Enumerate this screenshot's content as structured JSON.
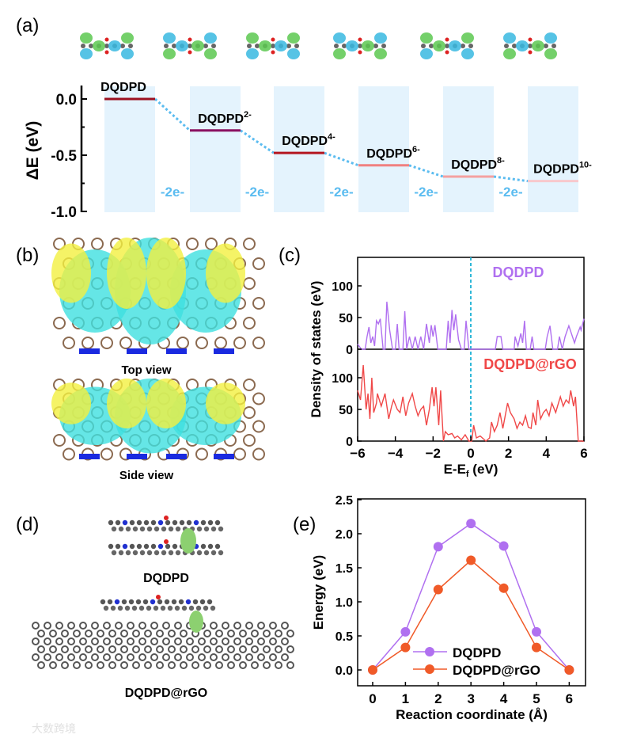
{
  "panel_labels": [
    "(a)",
    "(b)",
    "(c)",
    "(d)",
    "(e)"
  ],
  "panel_b": {
    "top_caption": "Top view",
    "side_caption": "Side view"
  },
  "panel_d": {
    "top_caption": "DQDPD",
    "bottom_caption": "DQDPD@rGO"
  },
  "watermark": "大数跨境",
  "colors": {
    "purple": "#b070f0",
    "red": "#f04848",
    "orange": "#f05a28",
    "cyan": "#30b8d8",
    "bar_bg": "#e4f3fd",
    "electron": "#5bbcf0"
  },
  "chart_data": [
    {
      "type": "bar",
      "panel": "a",
      "ylabel": "ΔE (eV)",
      "ylim": [
        -1.0,
        0.1
      ],
      "yticks": [
        "0.0",
        "-0.5",
        "-1.0"
      ],
      "categories": [
        "DQDPD",
        "DQDPD",
        "DQDPD",
        "DQDPD",
        "DQDPD",
        "DQDPD"
      ],
      "superscripts": [
        "",
        "2-",
        "4-",
        "6-",
        "8-",
        "10-"
      ],
      "values": [
        0.0,
        -0.28,
        -0.48,
        -0.59,
        -0.69,
        -0.73
      ],
      "level_colors": [
        "#9b1020",
        "#8a1060",
        "#b41620",
        "#f08080",
        "#f4a0a0",
        "#f8c8cc"
      ],
      "step_label": "-2e-"
    },
    {
      "type": "line",
      "panel": "c",
      "xlabel": "E-E",
      "xlabel_sub": "f",
      "xlabel_unit": " (eV)",
      "ylabel": "Density of states (eV)",
      "xlim": [
        -6,
        6
      ],
      "xticks": [
        "−6",
        "−4",
        "−2",
        "0",
        "2",
        "4",
        "6"
      ],
      "yticks": [
        "0",
        "50",
        "100"
      ],
      "ylim": [
        0,
        145
      ],
      "series": [
        {
          "name": "DQDPD",
          "points": [
            [
              -6,
              8
            ],
            [
              -5.8,
              0
            ],
            [
              -5.6,
              0
            ],
            [
              -5.5,
              20
            ],
            [
              -5.4,
              35
            ],
            [
              -5.3,
              10
            ],
            [
              -5.2,
              20
            ],
            [
              -5.1,
              5
            ],
            [
              -5.0,
              45
            ],
            [
              -4.9,
              40
            ],
            [
              -4.8,
              48
            ],
            [
              -4.65,
              0
            ],
            [
              -4.55,
              0
            ],
            [
              -4.45,
              75
            ],
            [
              -4.3,
              30
            ],
            [
              -4.15,
              0
            ],
            [
              -4.0,
              0
            ],
            [
              -3.9,
              40
            ],
            [
              -3.8,
              0
            ],
            [
              -3.6,
              0
            ],
            [
              -3.5,
              60
            ],
            [
              -3.4,
              0
            ],
            [
              -3.25,
              20
            ],
            [
              -3.1,
              0
            ],
            [
              -2.95,
              20
            ],
            [
              -2.8,
              0
            ],
            [
              -2.65,
              20
            ],
            [
              -2.5,
              0
            ],
            [
              -2.35,
              40
            ],
            [
              -2.2,
              10
            ],
            [
              -2.1,
              38
            ],
            [
              -2.0,
              20
            ],
            [
              -1.9,
              38
            ],
            [
              -1.75,
              0
            ],
            [
              -1.3,
              0
            ],
            [
              -1.2,
              45
            ],
            [
              -1.1,
              10
            ],
            [
              -1.0,
              62
            ],
            [
              -0.9,
              30
            ],
            [
              -0.8,
              55
            ],
            [
              -0.65,
              15
            ],
            [
              -0.5,
              0
            ],
            [
              -0.35,
              0
            ],
            [
              -0.25,
              45
            ],
            [
              -0.1,
              0
            ],
            [
              1.3,
              0
            ],
            [
              1.4,
              20
            ],
            [
              1.6,
              20
            ],
            [
              1.7,
              0
            ],
            [
              2.3,
              0
            ],
            [
              2.35,
              20
            ],
            [
              2.5,
              5
            ],
            [
              2.65,
              25
            ],
            [
              2.75,
              10
            ],
            [
              2.85,
              45
            ],
            [
              2.95,
              0
            ],
            [
              3.15,
              0
            ],
            [
              3.25,
              20
            ],
            [
              3.35,
              0
            ],
            [
              3.95,
              0
            ],
            [
              4.05,
              20
            ],
            [
              4.2,
              37
            ],
            [
              4.35,
              0
            ],
            [
              4.6,
              0
            ],
            [
              4.7,
              20
            ],
            [
              4.85,
              0
            ],
            [
              5.0,
              20
            ],
            [
              5.2,
              37
            ],
            [
              5.5,
              10
            ],
            [
              5.6,
              20
            ],
            [
              5.8,
              35
            ],
            [
              5.85,
              30
            ],
            [
              6.0,
              48
            ]
          ]
        },
        {
          "name": "DQDPD@rGO",
          "points": [
            [
              -6,
              80
            ],
            [
              -5.85,
              65
            ],
            [
              -5.7,
              120
            ],
            [
              -5.55,
              50
            ],
            [
              -5.45,
              75
            ],
            [
              -5.35,
              35
            ],
            [
              -5.25,
              100
            ],
            [
              -5.15,
              45
            ],
            [
              -5.0,
              60
            ],
            [
              -4.95,
              75
            ],
            [
              -4.75,
              55
            ],
            [
              -4.55,
              75
            ],
            [
              -4.35,
              35
            ],
            [
              -4.2,
              55
            ],
            [
              -4.1,
              65
            ],
            [
              -3.9,
              50
            ],
            [
              -3.75,
              45
            ],
            [
              -3.6,
              70
            ],
            [
              -3.45,
              40
            ],
            [
              -3.3,
              60
            ],
            [
              -3.1,
              75
            ],
            [
              -2.95,
              55
            ],
            [
              -2.8,
              40
            ],
            [
              -2.65,
              50
            ],
            [
              -2.5,
              55
            ],
            [
              -2.35,
              25
            ],
            [
              -2.2,
              50
            ],
            [
              -2.05,
              85
            ],
            [
              -1.95,
              55
            ],
            [
              -1.85,
              85
            ],
            [
              -1.7,
              25
            ],
            [
              -1.6,
              80
            ],
            [
              -1.45,
              0
            ],
            [
              -1.35,
              15
            ],
            [
              -1.2,
              10
            ],
            [
              -1.0,
              12
            ],
            [
              -0.85,
              5
            ],
            [
              -0.7,
              8
            ],
            [
              -0.5,
              2
            ],
            [
              -0.3,
              10
            ],
            [
              -0.1,
              0
            ],
            [
              0.05,
              0
            ],
            [
              0.15,
              25
            ],
            [
              0.3,
              5
            ],
            [
              0.5,
              8
            ],
            [
              0.8,
              0
            ],
            [
              1.0,
              5
            ],
            [
              1.1,
              30
            ],
            [
              1.25,
              15
            ],
            [
              1.4,
              25
            ],
            [
              1.55,
              45
            ],
            [
              1.7,
              20
            ],
            [
              1.95,
              60
            ],
            [
              2.1,
              45
            ],
            [
              2.3,
              35
            ],
            [
              2.45,
              20
            ],
            [
              2.6,
              30
            ],
            [
              2.75,
              25
            ],
            [
              2.9,
              40
            ],
            [
              3.05,
              22
            ],
            [
              3.2,
              20
            ],
            [
              3.3,
              45
            ],
            [
              3.45,
              25
            ],
            [
              3.55,
              65
            ],
            [
              3.7,
              35
            ],
            [
              3.85,
              45
            ],
            [
              4.0,
              50
            ],
            [
              4.15,
              40
            ],
            [
              4.3,
              60
            ],
            [
              4.5,
              45
            ],
            [
              4.6,
              55
            ],
            [
              4.75,
              70
            ],
            [
              4.9,
              55
            ],
            [
              5.05,
              65
            ],
            [
              5.2,
              60
            ],
            [
              5.3,
              80
            ],
            [
              5.45,
              55
            ],
            [
              5.55,
              70
            ],
            [
              5.7,
              0
            ],
            [
              6.0,
              0
            ]
          ]
        }
      ]
    },
    {
      "type": "line",
      "panel": "e",
      "xlabel": "Reaction coordinate (Å)",
      "ylabel": "Energy (eV)",
      "xlim": [
        0,
        6
      ],
      "ylim": [
        0,
        2.5
      ],
      "xticks": [
        "0",
        "1",
        "2",
        "3",
        "4",
        "5",
        "6"
      ],
      "yticks": [
        "0.0",
        "0.5",
        "1.0",
        "1.5",
        "2.0",
        "2.5"
      ],
      "legend": "bottom-center",
      "x": [
        0,
        1,
        2,
        3,
        4,
        5,
        6
      ],
      "series": [
        {
          "name": "DQDPD",
          "values": [
            0,
            0.56,
            1.81,
            2.15,
            1.82,
            0.56,
            0
          ]
        },
        {
          "name": "DQDPD@rGO",
          "values": [
            0,
            0.33,
            1.18,
            1.61,
            1.2,
            0.33,
            0
          ]
        }
      ]
    }
  ]
}
